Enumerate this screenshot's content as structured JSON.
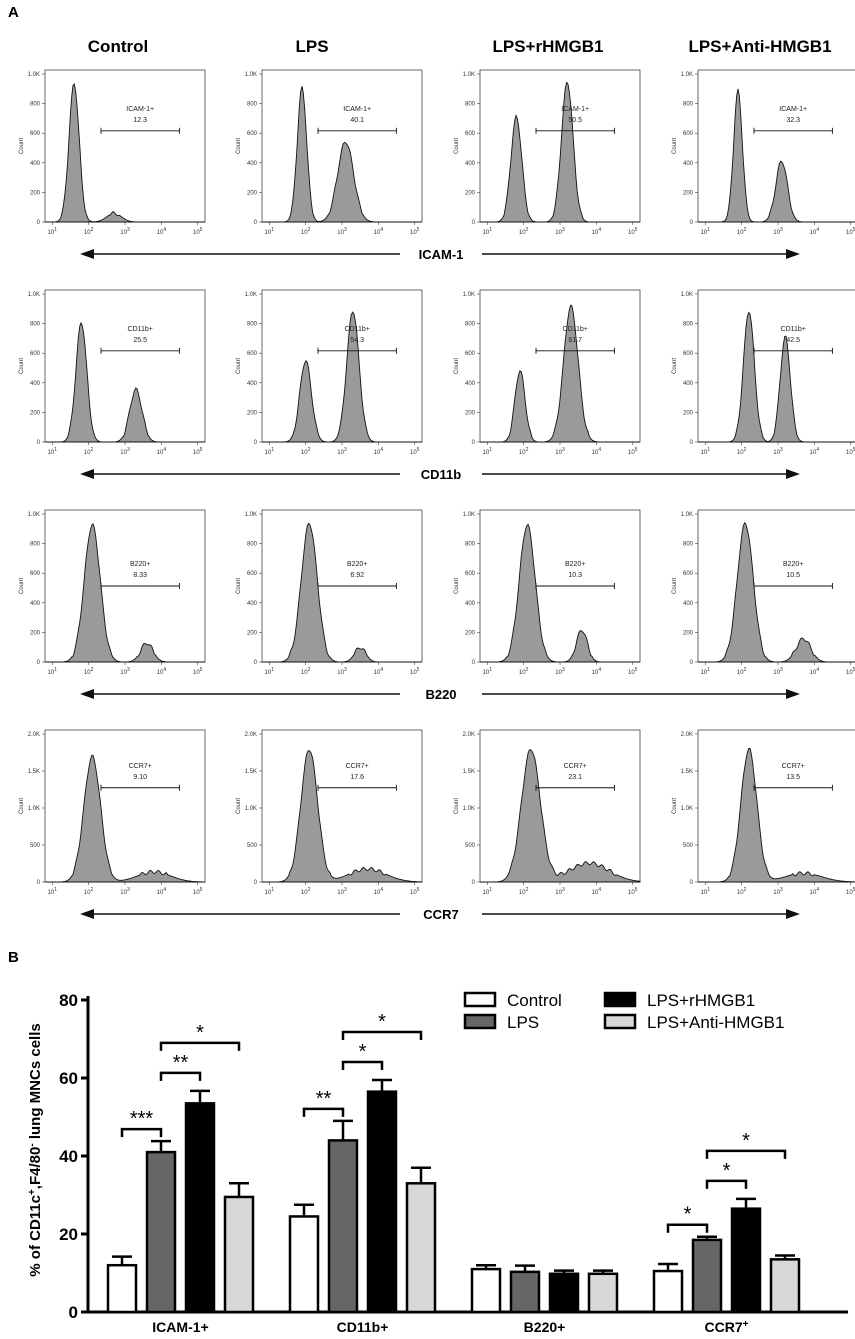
{
  "panel_a_label": "A",
  "panel_b_label": "B",
  "flow_tick_labels": [
    "10^1",
    "10^2",
    "10^3",
    "10^4",
    "10^5"
  ],
  "chart_data": [
    {
      "type": "histogram",
      "title": "Panel A",
      "columns": [
        "Control",
        "LPS",
        "LPS+rHMGB1",
        "LPS+Anti-HMGB1"
      ],
      "ylabel": "Count",
      "rows": [
        {
          "marker": "ICAM-1",
          "gate_label": "ICAM-1+",
          "gate_values": [
            "12.3",
            "40.1",
            "50.5",
            "32.3"
          ],
          "y_ticks": [
            "0",
            "200",
            "400",
            "600",
            "800",
            "1.0K"
          ],
          "ymax": 1000,
          "peaks": [
            [
              [
                1.6,
                0.95,
                0.14
              ],
              [
                2.7,
                0.06,
                0.2
              ]
            ],
            [
              [
                1.9,
                0.92,
                0.13
              ],
              [
                3.1,
                0.55,
                0.22
              ]
            ],
            [
              [
                1.8,
                0.72,
                0.15
              ],
              [
                3.2,
                0.96,
                0.16
              ]
            ],
            [
              [
                1.9,
                0.9,
                0.12
              ],
              [
                3.1,
                0.42,
                0.16
              ]
            ]
          ]
        },
        {
          "marker": "CD11b",
          "gate_label": "CD11b+",
          "gate_values": [
            "25.5",
            "54.3",
            "61.7",
            "42.5"
          ],
          "y_ticks": [
            "0",
            "200",
            "400",
            "600",
            "800",
            "1.0K"
          ],
          "ymax": 1000,
          "peaks": [
            [
              [
                1.8,
                0.82,
                0.15
              ],
              [
                3.3,
                0.36,
                0.17
              ]
            ],
            [
              [
                2.0,
                0.56,
                0.16
              ],
              [
                3.3,
                0.9,
                0.17
              ]
            ],
            [
              [
                1.9,
                0.49,
                0.14
              ],
              [
                3.3,
                0.93,
                0.2
              ]
            ],
            [
              [
                2.2,
                0.9,
                0.15
              ],
              [
                3.2,
                0.72,
                0.14
              ]
            ]
          ]
        },
        {
          "marker": "B220",
          "gate_label": "B220+",
          "gate_values": [
            "8.33",
            "6.92",
            "10.3",
            "10.5"
          ],
          "y_ticks": [
            "0",
            "200",
            "400",
            "600",
            "800",
            "1.0K"
          ],
          "ymax": 1000,
          "peaks": [
            [
              [
                2.1,
                0.94,
                0.22
              ],
              [
                3.6,
                0.13,
                0.17
              ]
            ],
            [
              [
                2.1,
                0.95,
                0.22
              ],
              [
                3.5,
                0.1,
                0.15
              ]
            ],
            [
              [
                2.1,
                0.94,
                0.22
              ],
              [
                3.6,
                0.22,
                0.15
              ]
            ],
            [
              [
                2.1,
                0.95,
                0.22
              ],
              [
                3.7,
                0.16,
                0.2
              ]
            ]
          ]
        },
        {
          "marker": "CCR7",
          "gate_label": "CCR7+",
          "gate_values": [
            "9.10",
            "17.6",
            "23.1",
            "13.5"
          ],
          "y_ticks": [
            "0",
            "500",
            "1.0K",
            "1.5K",
            "2.0K"
          ],
          "ymax": 2000,
          "peaks": [
            [
              [
                2.1,
                0.86,
                0.23
              ],
              [
                3.8,
                0.07,
                0.45
              ]
            ],
            [
              [
                2.1,
                0.91,
                0.23
              ],
              [
                3.7,
                0.09,
                0.5
              ]
            ],
            [
              [
                2.2,
                0.91,
                0.26
              ],
              [
                3.8,
                0.13,
                0.55
              ]
            ],
            [
              [
                2.2,
                0.91,
                0.22
              ],
              [
                3.7,
                0.06,
                0.5
              ]
            ]
          ]
        }
      ]
    },
    {
      "type": "bar",
      "title": "Panel B",
      "ylabel": "% of CD11c+,F4/80- lung MNCs cells",
      "ylabel_parts": [
        "% of CD11c",
        "+",
        ",F4/80",
        "-",
        " lung MNCs cells"
      ],
      "ylim": [
        0,
        80
      ],
      "y_ticks": [
        "0",
        "20",
        "40",
        "60",
        "80"
      ],
      "categories": [
        "ICAM-1+",
        "CD11b+",
        "B220+",
        "CCR7+"
      ],
      "category_parts": [
        [
          "ICAM-1+",
          ""
        ],
        [
          "CD11b+",
          ""
        ],
        [
          "B220+",
          ""
        ],
        [
          "CCR7",
          "+"
        ]
      ],
      "series": [
        {
          "name": "Control",
          "color": "#ffffff",
          "values": [
            12,
            24.5,
            11,
            10.5
          ],
          "errors": [
            2.2,
            3,
            1,
            1.8
          ]
        },
        {
          "name": "LPS",
          "color": "#666666",
          "values": [
            41,
            44,
            10.3,
            18.5
          ],
          "errors": [
            2.8,
            5,
            1.6,
            0.8
          ]
        },
        {
          "name": "LPS+rHMGB1",
          "color": "#000000",
          "values": [
            53.5,
            56.5,
            9.8,
            26.5
          ],
          "errors": [
            3.2,
            3,
            0.8,
            2.5
          ]
        },
        {
          "name": "LPS+Anti-HMGB1",
          "color": "#d8d8d8",
          "values": [
            29.5,
            33,
            9.8,
            13.5
          ],
          "errors": [
            3.5,
            4,
            0.8,
            1
          ]
        }
      ],
      "significance": [
        {
          "category": 0,
          "from": 0,
          "to": 1,
          "label": "***"
        },
        {
          "category": 0,
          "from": 1,
          "to": 2,
          "label": "**"
        },
        {
          "category": 0,
          "from": 1,
          "to": 3,
          "label": "*"
        },
        {
          "category": 1,
          "from": 0,
          "to": 1,
          "label": "**"
        },
        {
          "category": 1,
          "from": 1,
          "to": 2,
          "label": "*"
        },
        {
          "category": 1,
          "from": 1,
          "to": 3,
          "label": "*"
        },
        {
          "category": 3,
          "from": 0,
          "to": 1,
          "label": "*"
        },
        {
          "category": 3,
          "from": 1,
          "to": 2,
          "label": "*"
        },
        {
          "category": 3,
          "from": 1,
          "to": 3,
          "label": "*"
        }
      ],
      "legend_position": "right"
    }
  ]
}
